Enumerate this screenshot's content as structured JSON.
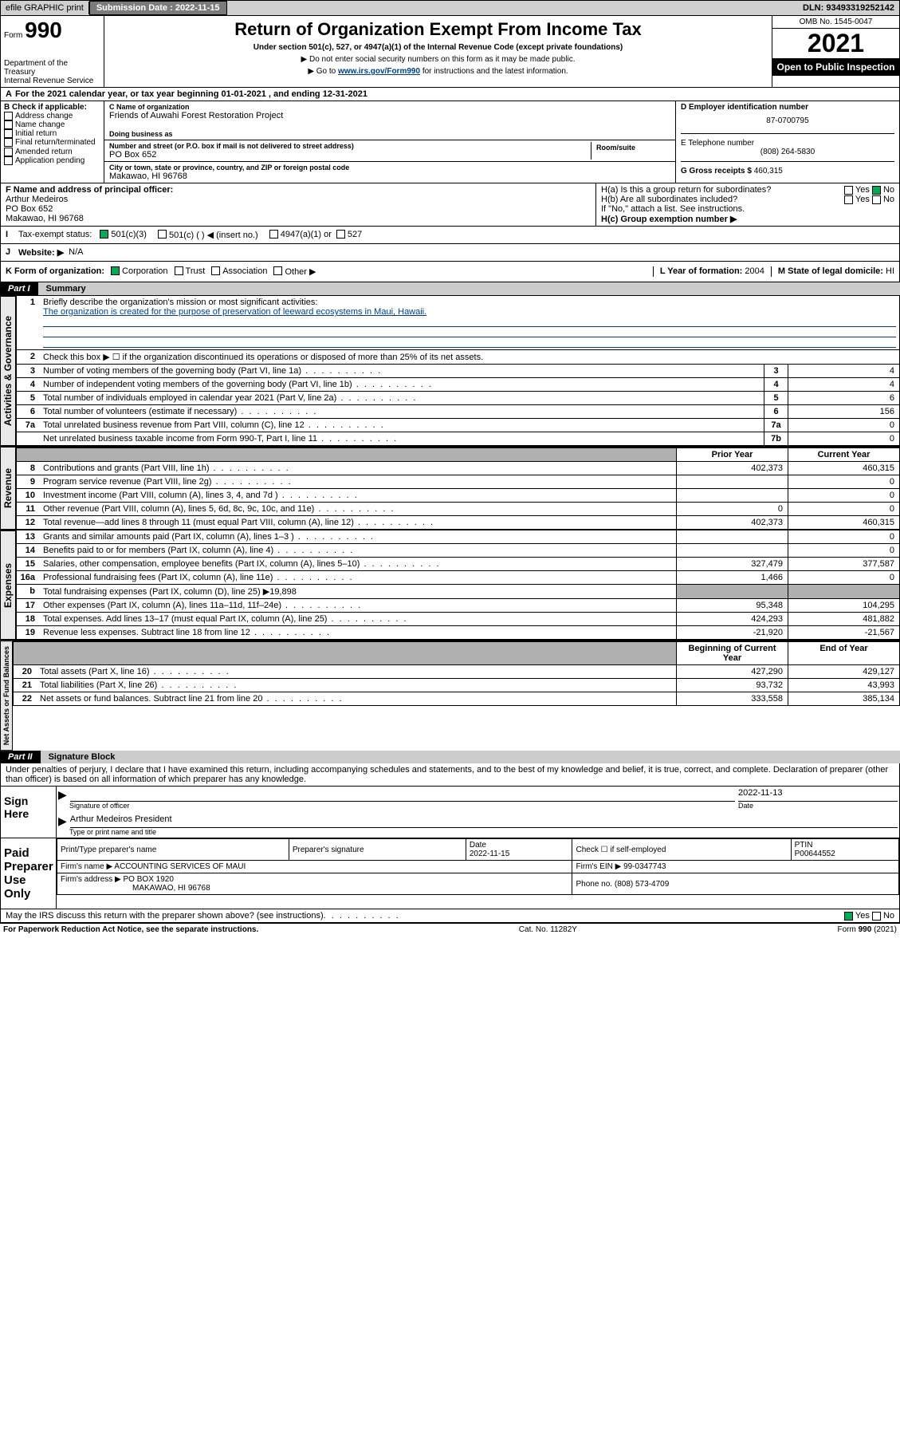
{
  "topbar": {
    "efile": "efile GRAPHIC print",
    "submission_label": "Submission Date : 2022-11-15",
    "dln": "DLN: 93493319252142"
  },
  "header": {
    "form_word": "Form",
    "form_num": "990",
    "dept": "Department of the Treasury",
    "irs": "Internal Revenue Service",
    "title": "Return of Organization Exempt From Income Tax",
    "subtitle": "Under section 501(c), 527, or 4947(a)(1) of the Internal Revenue Code (except private foundations)",
    "instr1": "▶ Do not enter social security numbers on this form as it may be made public.",
    "instr2_pre": "▶ Go to ",
    "instr2_link": "www.irs.gov/Form990",
    "instr2_post": " for instructions and the latest information.",
    "omb": "OMB No. 1545-0047",
    "year": "2021",
    "oti": "Open to Public Inspection"
  },
  "A": {
    "text": "For the 2021 calendar year, or tax year beginning 01-01-2021   , and ending 12-31-2021"
  },
  "B": {
    "label": "B Check if applicable:",
    "opts": [
      "Address change",
      "Name change",
      "Initial return",
      "Final return/terminated",
      "Amended return",
      "Application pending"
    ]
  },
  "C": {
    "name_label": "C Name of organization",
    "name": "Friends of Auwahi Forest Restoration Project",
    "dba_label": "Doing business as",
    "addr_label": "Number and street (or P.O. box if mail is not delivered to street address)",
    "room_label": "Room/suite",
    "addr": "PO Box 652",
    "city_label": "City or town, state or province, country, and ZIP or foreign postal code",
    "city": "Makawao, HI  96768"
  },
  "D": {
    "label": "D Employer identification number",
    "val": "87-0700795"
  },
  "E": {
    "label": "E Telephone number",
    "val": "(808) 264-5830"
  },
  "G": {
    "label": "G Gross receipts $",
    "val": "460,315"
  },
  "F": {
    "label": "F Name and address of principal officer:",
    "name": "Arthur Medeiros",
    "addr1": "PO Box 652",
    "addr2": "Makawao, HI  96768"
  },
  "H": {
    "a": "H(a)  Is this a group return for subordinates?",
    "b": "H(b)  Are all subordinates included?",
    "note": "If \"No,\" attach a list. See instructions.",
    "c": "H(c)  Group exemption number ▶"
  },
  "I": {
    "label": "Tax-exempt status:",
    "o1": "501(c)(3)",
    "o2": "501(c) (  ) ◀ (insert no.)",
    "o3": "4947(a)(1) or",
    "o4": "527"
  },
  "J": {
    "label": "Website: ▶",
    "val": "N/A"
  },
  "K": {
    "label": "K Form of organization:",
    "o1": "Corporation",
    "o2": "Trust",
    "o3": "Association",
    "o4": "Other ▶"
  },
  "L": {
    "label": "L Year of formation:",
    "val": "2004"
  },
  "M": {
    "label": "M State of legal domicile:",
    "val": "HI"
  },
  "partI": {
    "tag": "Part I",
    "title": "Summary",
    "l1": "Briefly describe the organization's mission or most significant activities:",
    "mission": "The organization is created for the purpose of preservation of leeward ecosystems in Maui, Hawaii.",
    "l2": "Check this box ▶ ☐  if the organization discontinued its operations or disposed of more than 25% of its net assets.",
    "lines_gov": [
      {
        "n": "3",
        "d": "Number of voting members of the governing body (Part VI, line 1a)",
        "b": "3",
        "v": "4"
      },
      {
        "n": "4",
        "d": "Number of independent voting members of the governing body (Part VI, line 1b)",
        "b": "4",
        "v": "4"
      },
      {
        "n": "5",
        "d": "Total number of individuals employed in calendar year 2021 (Part V, line 2a)",
        "b": "5",
        "v": "6"
      },
      {
        "n": "6",
        "d": "Total number of volunteers (estimate if necessary)",
        "b": "6",
        "v": "156"
      },
      {
        "n": "7a",
        "d": "Total unrelated business revenue from Part VIII, column (C), line 12",
        "b": "7a",
        "v": "0"
      },
      {
        "n": "",
        "d": "Net unrelated business taxable income from Form 990-T, Part I, line 11",
        "b": "7b",
        "v": "0"
      }
    ],
    "col_prior": "Prior Year",
    "col_curr": "Current Year",
    "rev": [
      {
        "n": "8",
        "d": "Contributions and grants (Part VIII, line 1h)",
        "p": "402,373",
        "c": "460,315"
      },
      {
        "n": "9",
        "d": "Program service revenue (Part VIII, line 2g)",
        "p": "",
        "c": "0"
      },
      {
        "n": "10",
        "d": "Investment income (Part VIII, column (A), lines 3, 4, and 7d )",
        "p": "",
        "c": "0"
      },
      {
        "n": "11",
        "d": "Other revenue (Part VIII, column (A), lines 5, 6d, 8c, 9c, 10c, and 11e)",
        "p": "0",
        "c": "0"
      },
      {
        "n": "12",
        "d": "Total revenue—add lines 8 through 11 (must equal Part VIII, column (A), line 12)",
        "p": "402,373",
        "c": "460,315"
      }
    ],
    "exp": [
      {
        "n": "13",
        "d": "Grants and similar amounts paid (Part IX, column (A), lines 1–3 )",
        "p": "",
        "c": "0"
      },
      {
        "n": "14",
        "d": "Benefits paid to or for members (Part IX, column (A), line 4)",
        "p": "",
        "c": "0"
      },
      {
        "n": "15",
        "d": "Salaries, other compensation, employee benefits (Part IX, column (A), lines 5–10)",
        "p": "327,479",
        "c": "377,587"
      },
      {
        "n": "16a",
        "d": "Professional fundraising fees (Part IX, column (A), line 11e)",
        "p": "1,466",
        "c": "0"
      },
      {
        "n": "b",
        "d": "Total fundraising expenses (Part IX, column (D), line 25) ▶19,898",
        "p": "",
        "c": "",
        "shade": true
      },
      {
        "n": "17",
        "d": "Other expenses (Part IX, column (A), lines 11a–11d, 11f–24e)",
        "p": "95,348",
        "c": "104,295"
      },
      {
        "n": "18",
        "d": "Total expenses. Add lines 13–17 (must equal Part IX, column (A), line 25)",
        "p": "424,293",
        "c": "481,882"
      },
      {
        "n": "19",
        "d": "Revenue less expenses. Subtract line 18 from line 12",
        "p": "-21,920",
        "c": "-21,567"
      }
    ],
    "col_begin": "Beginning of Current Year",
    "col_end": "End of Year",
    "net": [
      {
        "n": "20",
        "d": "Total assets (Part X, line 16)",
        "p": "427,290",
        "c": "429,127"
      },
      {
        "n": "21",
        "d": "Total liabilities (Part X, line 26)",
        "p": "93,732",
        "c": "43,993"
      },
      {
        "n": "22",
        "d": "Net assets or fund balances. Subtract line 21 from line 20",
        "p": "333,558",
        "c": "385,134"
      }
    ],
    "vert_gov": "Activities & Governance",
    "vert_rev": "Revenue",
    "vert_exp": "Expenses",
    "vert_net": "Net Assets or Fund Balances"
  },
  "partII": {
    "tag": "Part II",
    "title": "Signature Block",
    "decl": "Under penalties of perjury, I declare that I have examined this return, including accompanying schedules and statements, and to the best of my knowledge and belief, it is true, correct, and complete. Declaration of preparer (other than officer) is based on all information of which preparer has any knowledge.",
    "sign_here": "Sign Here",
    "sig_officer": "Signature of officer",
    "sig_date_label": "Date",
    "sig_date": "2022-11-13",
    "sig_name": "Arthur Medeiros  President",
    "sig_name_label": "Type or print name and title",
    "paid": "Paid Preparer Use Only",
    "prep_hdr": [
      "Print/Type preparer's name",
      "Preparer's signature",
      "Date",
      "",
      "PTIN"
    ],
    "prep_date": "2022-11-15",
    "prep_check": "Check ☐ if self-employed",
    "ptin": "P00644552",
    "firm_name_label": "Firm's name    ▶",
    "firm_name": "ACCOUNTING SERVICES OF MAUI",
    "firm_ein_label": "Firm's EIN ▶",
    "firm_ein": "99-0347743",
    "firm_addr_label": "Firm's address ▶",
    "firm_addr1": "PO BOX 1920",
    "firm_addr2": "MAKAWAO, HI  96768",
    "phone_label": "Phone no.",
    "phone": "(808) 573-4709",
    "discuss": "May the IRS discuss this return with the preparer shown above? (see instructions)",
    "yes": "Yes",
    "no": "No"
  },
  "footer": {
    "pra": "For Paperwork Reduction Act Notice, see the separate instructions.",
    "cat": "Cat. No. 11282Y",
    "form": "Form 990 (2021)"
  }
}
